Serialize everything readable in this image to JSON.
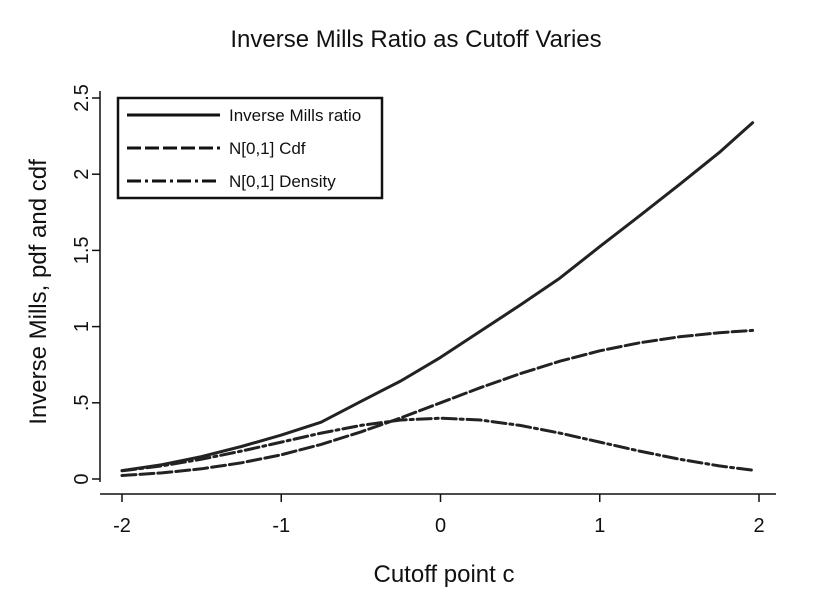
{
  "chart_data": {
    "type": "line",
    "title": "Inverse Mills Ratio as Cutoff Varies",
    "xlabel": "Cutoff point c",
    "ylabel": "Inverse Mills, pdf and cdf",
    "xlim": [
      -2,
      2
    ],
    "ylim": [
      0,
      2.5
    ],
    "xticks": [
      -2,
      -1,
      0,
      1,
      2
    ],
    "xtick_labels": [
      "-2",
      "-1",
      "0",
      "1",
      "2"
    ],
    "yticks": [
      0,
      0.5,
      1,
      1.5,
      2,
      2.5
    ],
    "ytick_labels": [
      "0",
      ".5",
      "1",
      "1.5",
      "2",
      "2.5"
    ],
    "grid": false,
    "legend_position": "top-left",
    "x": [
      -2.0,
      -1.75,
      -1.5,
      -1.25,
      -1.0,
      -0.75,
      -0.5,
      -0.25,
      0.0,
      0.25,
      0.5,
      0.75,
      1.0,
      1.25,
      1.5,
      1.75,
      1.96
    ],
    "series": [
      {
        "name": "Inverse Mills ratio",
        "style": "solid",
        "values": [
          0.055,
          0.094,
          0.147,
          0.213,
          0.288,
          0.373,
          0.509,
          0.643,
          0.798,
          0.969,
          1.141,
          1.318,
          1.525,
          1.727,
          1.932,
          2.142,
          2.338
        ]
      },
      {
        "name": "N[0,1] Cdf",
        "style": "dashed",
        "values": [
          0.023,
          0.04,
          0.067,
          0.106,
          0.159,
          0.227,
          0.309,
          0.401,
          0.5,
          0.599,
          0.691,
          0.773,
          0.841,
          0.894,
          0.933,
          0.96,
          0.975
        ]
      },
      {
        "name": "N[0,1] Density",
        "style": "dashdot",
        "values": [
          0.054,
          0.086,
          0.13,
          0.183,
          0.242,
          0.301,
          0.352,
          0.387,
          0.399,
          0.387,
          0.352,
          0.301,
          0.242,
          0.183,
          0.13,
          0.086,
          0.058
        ]
      }
    ]
  }
}
